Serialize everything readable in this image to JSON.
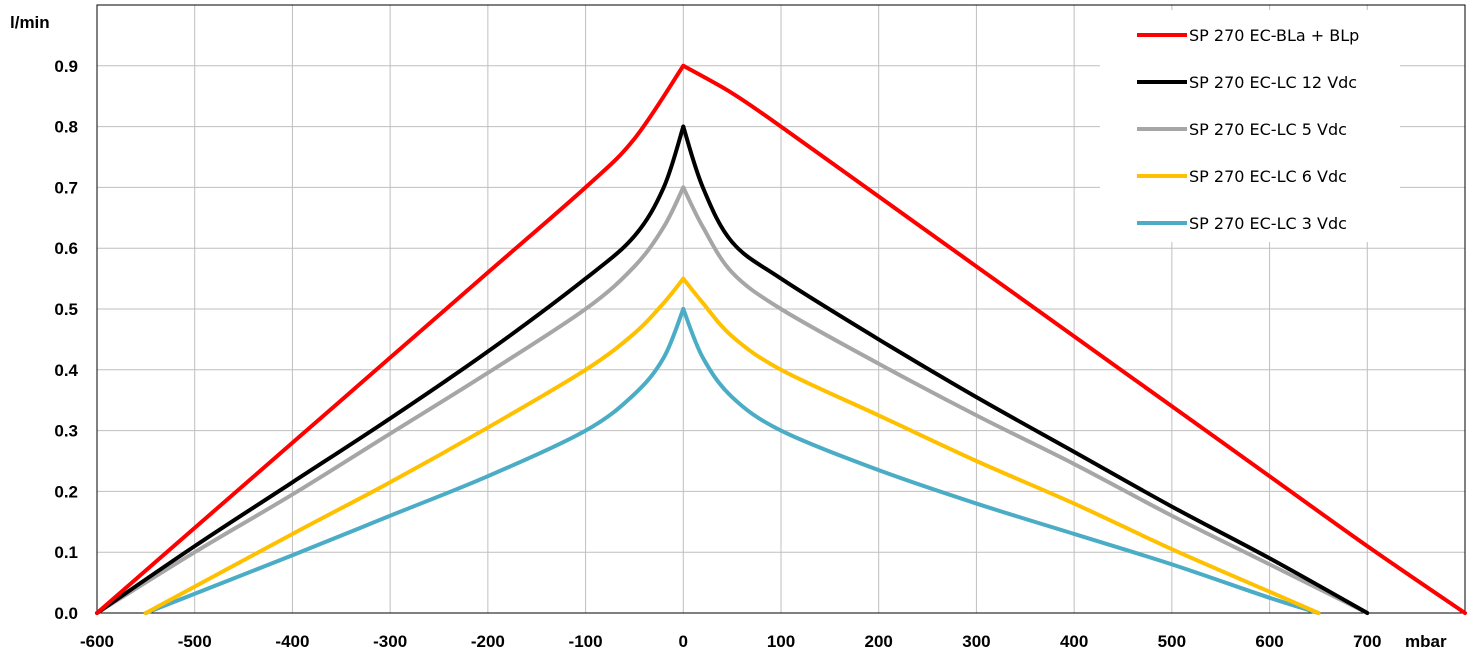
{
  "chart_data": {
    "type": "line",
    "ylabel": "l/min",
    "xlabel": "mbar",
    "xlim": [
      -600,
      800
    ],
    "ylim": [
      0,
      1.0
    ],
    "x_ticks": [
      "-600",
      "-500",
      "-400",
      "-300",
      "-200",
      "-100",
      "0",
      "100",
      "200",
      "300",
      "400",
      "500",
      "600",
      "700"
    ],
    "y_ticks": [
      "0.0",
      "0.1",
      "0.2",
      "0.3",
      "0.4",
      "0.5",
      "0.6",
      "0.7",
      "0.8",
      "0.9"
    ],
    "grid": true,
    "legend_position": "top-right",
    "series": [
      {
        "name": "SP 270 EC-BLa + BLp",
        "color": "#ff0000",
        "x": [
          -600,
          -500,
          -400,
          -300,
          -200,
          -100,
          -50,
          0,
          50,
          100,
          200,
          300,
          400,
          500,
          600,
          700,
          800
        ],
        "y": [
          0.0,
          0.14,
          0.28,
          0.42,
          0.56,
          0.7,
          0.78,
          0.9,
          0.855,
          0.8,
          0.685,
          0.57,
          0.455,
          0.34,
          0.225,
          0.11,
          0.0
        ]
      },
      {
        "name": "SP 270 EC-LC 12 Vdc",
        "color": "#000000",
        "x": [
          -600,
          -500,
          -400,
          -300,
          -200,
          -100,
          -50,
          -20,
          0,
          20,
          50,
          100,
          200,
          300,
          400,
          500,
          600,
          700
        ],
        "y": [
          0.0,
          0.11,
          0.215,
          0.32,
          0.43,
          0.55,
          0.62,
          0.7,
          0.8,
          0.7,
          0.61,
          0.55,
          0.45,
          0.355,
          0.265,
          0.175,
          0.09,
          0.0
        ]
      },
      {
        "name": "SP 270 EC-LC 5 Vdc",
        "color": "#a6a6a6",
        "x": [
          -600,
          -500,
          -400,
          -300,
          -200,
          -100,
          -50,
          -20,
          0,
          20,
          50,
          100,
          200,
          300,
          400,
          500,
          600,
          700
        ],
        "y": [
          0.0,
          0.1,
          0.195,
          0.295,
          0.395,
          0.5,
          0.57,
          0.635,
          0.7,
          0.635,
          0.56,
          0.5,
          0.41,
          0.325,
          0.245,
          0.16,
          0.08,
          0.0
        ]
      },
      {
        "name": "SP 270 EC-LC 6 Vdc",
        "color": "#ffc000",
        "x": [
          -550,
          -400,
          -300,
          -200,
          -100,
          -50,
          -20,
          0,
          20,
          50,
          100,
          200,
          300,
          400,
          500,
          600,
          650
        ],
        "y": [
          0.0,
          0.13,
          0.215,
          0.305,
          0.4,
          0.46,
          0.51,
          0.55,
          0.51,
          0.455,
          0.4,
          0.325,
          0.25,
          0.18,
          0.105,
          0.035,
          0.0
        ]
      },
      {
        "name": "SP 270 EC-LC 3 Vdc",
        "color": "#4bacc6",
        "x": [
          -550,
          -400,
          -300,
          -200,
          -100,
          -50,
          -20,
          0,
          20,
          50,
          100,
          200,
          300,
          400,
          500,
          600,
          650
        ],
        "y": [
          0.0,
          0.095,
          0.16,
          0.225,
          0.3,
          0.36,
          0.42,
          0.5,
          0.42,
          0.355,
          0.3,
          0.235,
          0.18,
          0.13,
          0.08,
          0.025,
          0.0
        ]
      }
    ]
  }
}
